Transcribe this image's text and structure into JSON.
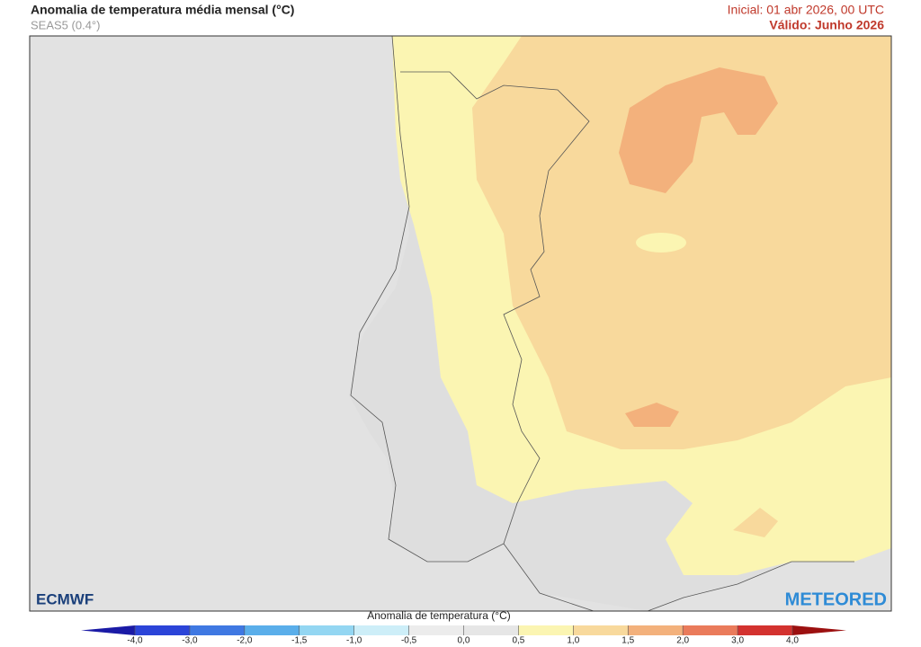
{
  "header": {
    "title": "Anomalia de temperatura média mensal (°C)",
    "subtitle": "SEAS5 (0.4°)",
    "initial": "Inicial: 01 abr 2026, 00 UTC",
    "valid": "Válido: Junho 2026"
  },
  "logos": {
    "left": "ECMWF",
    "right": "METEORED"
  },
  "colorbar": {
    "title": "Anomalia de temperatura (°C)",
    "ticks": [
      {
        "value": -4,
        "label": "-4,0"
      },
      {
        "value": -3,
        "label": "-3,0"
      },
      {
        "value": -2,
        "label": "-2,0"
      },
      {
        "value": -1.5,
        "label": "-1,5"
      },
      {
        "value": -1,
        "label": "-1,0"
      },
      {
        "value": -0.5,
        "label": "-0,5"
      },
      {
        "value": 0,
        "label": "0,0"
      },
      {
        "value": 0.5,
        "label": "0,5"
      },
      {
        "value": 1,
        "label": "1,0"
      },
      {
        "value": 1.5,
        "label": "1,5"
      },
      {
        "value": 2,
        "label": "2,0"
      },
      {
        "value": 3,
        "label": "3,0"
      },
      {
        "value": 4,
        "label": "4,0"
      }
    ],
    "colors": [
      "#2b44d8",
      "#3f78e2",
      "#5aaeea",
      "#93d6f2",
      "#cdeef8",
      "#ececec",
      "#e6e6e6",
      "#fbf5b2",
      "#f8d99c",
      "#f3b17c",
      "#ea7b5b",
      "#d3322f"
    ],
    "extend_colors": [
      "#1a1aa6",
      "#9c1010"
    ]
  }
}
